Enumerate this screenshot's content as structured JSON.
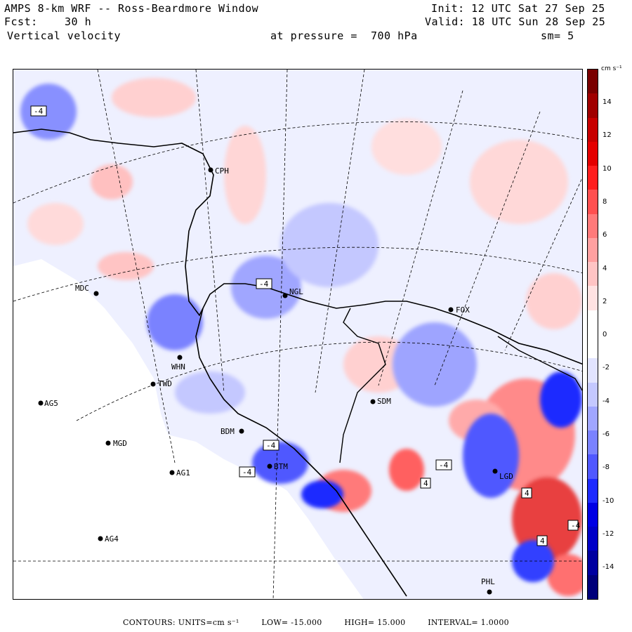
{
  "header": {
    "title": "AMPS 8-km WRF -- Ross-Beardmore Window",
    "forecast_label": "Fcst:",
    "forecast_hours": "30 h",
    "variable": "Vertical velocity",
    "init": "Init: 12 UTC Sat 27 Sep 25",
    "valid": "Valid: 18 UTC Sun 28 Sep 25",
    "pressure": "at pressure =  700 hPa",
    "smoothing": "sm= 5"
  },
  "colorbar": {
    "units": "cm s⁻¹",
    "ticks": [
      "14",
      "12",
      "10",
      "8",
      "6",
      "4",
      "2",
      "0",
      "-2",
      "-4",
      "-6",
      "-8",
      "-10",
      "-12",
      "-14"
    ],
    "colors": [
      "#7a0000",
      "#a00000",
      "#c80000",
      "#e40000",
      "#ff1e1e",
      "#ff5050",
      "#ff7a7a",
      "#ffa0a0",
      "#ffc4c4",
      "#ffe2e2",
      "#ffffff",
      "#ffffff",
      "#e2e4ff",
      "#c4c8ff",
      "#a0a6ff",
      "#7a82ff",
      "#5058ff",
      "#1e2aff",
      "#0000e4",
      "#0000c8",
      "#0000a0",
      "#00007a"
    ]
  },
  "stations": [
    {
      "id": "CPH"
    },
    {
      "id": "MDC"
    },
    {
      "id": "NGL"
    },
    {
      "id": "FOX"
    },
    {
      "id": "WHN"
    },
    {
      "id": "TWD"
    },
    {
      "id": "AG5"
    },
    {
      "id": "SDM"
    },
    {
      "id": "BDM"
    },
    {
      "id": "MGD"
    },
    {
      "id": "BTM"
    },
    {
      "id": "AG1"
    },
    {
      "id": "AG4"
    },
    {
      "id": "LGD"
    },
    {
      "id": "PHL"
    }
  ],
  "contour_labels": [
    "-4",
    "-4",
    "-4",
    "-4",
    "-4",
    "4",
    "4",
    "4",
    "-4"
  ],
  "footer": {
    "contours": "CONTOURS:  UNITS=cm s⁻¹",
    "low": "LOW= -15.000",
    "high": "HIGH=  15.000",
    "interval": "INTERVAL=   1.0000"
  }
}
